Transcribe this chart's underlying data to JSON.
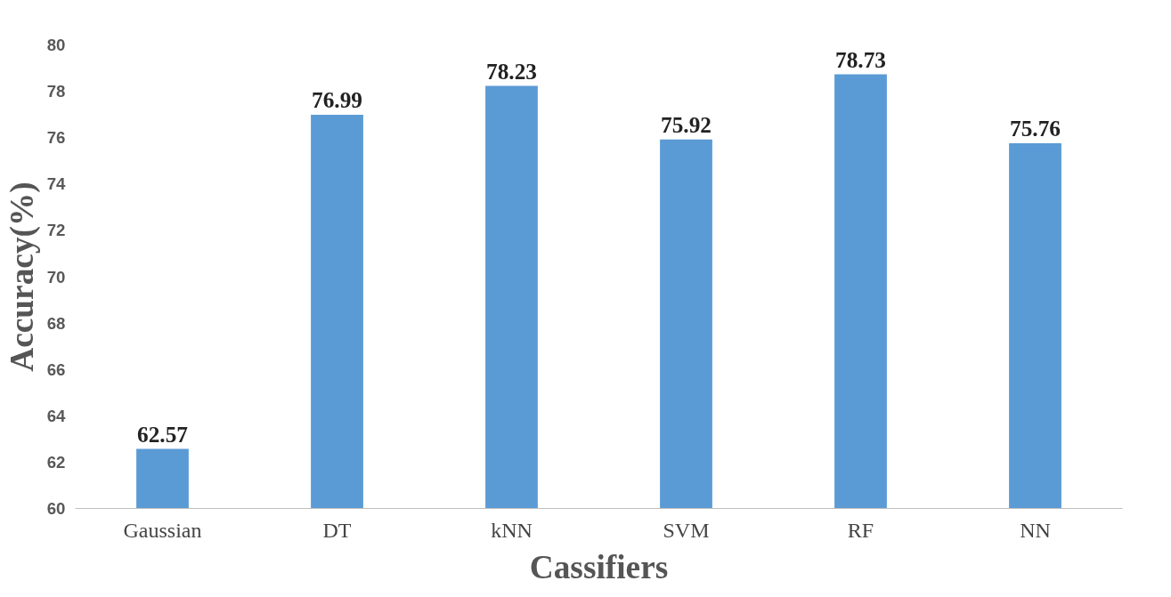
{
  "chart_data": {
    "type": "bar",
    "xlabel": "Cassifiers",
    "ylabel": "Accuracy(%)",
    "categories": [
      "Gaussian",
      "DT",
      "kNN",
      "SVM",
      "RF",
      "NN"
    ],
    "values": [
      62.57,
      76.99,
      78.23,
      75.92,
      78.73,
      75.76
    ],
    "color": "#5b9bd5",
    "ylim": [
      60,
      80
    ],
    "yticks": [
      60,
      62,
      64,
      66,
      68,
      70,
      72,
      74,
      76,
      78,
      80
    ],
    "grid": false,
    "data_labels": true
  }
}
